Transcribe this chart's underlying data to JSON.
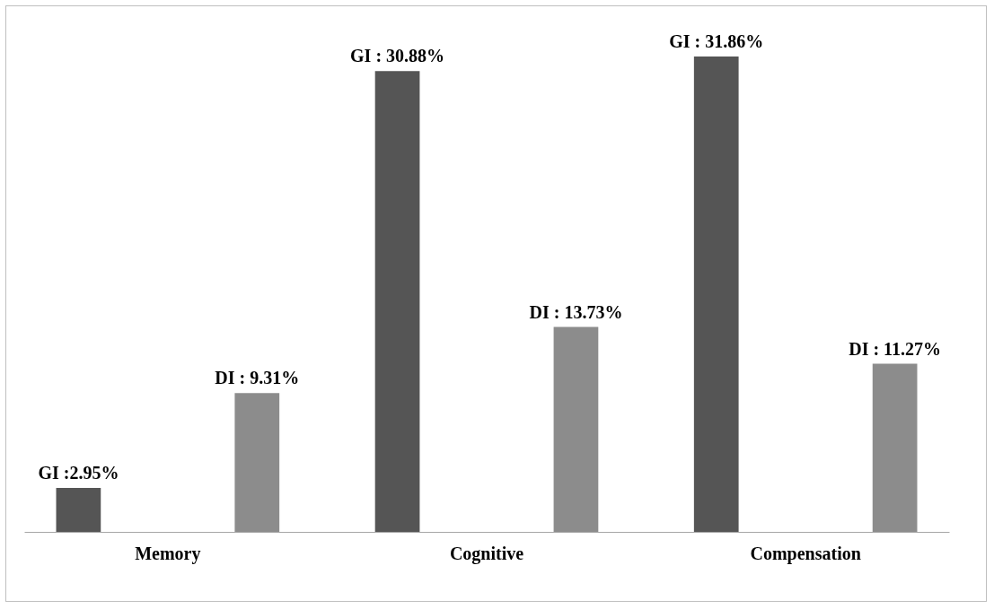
{
  "chart_data": {
    "type": "bar",
    "categories": [
      "Memory",
      "Cognitive",
      "Compensation"
    ],
    "series": [
      {
        "color": "#555555",
        "values": [
          2.95,
          30.88,
          31.86
        ],
        "value_labels": [
          "GI :2.95%",
          "GI : 30.88%",
          "GI : 31.86%"
        ]
      },
      {
        "color": "#8c8c8c",
        "values": [
          9.31,
          13.73,
          11.27
        ],
        "value_labels": [
          "DI : 9.31%",
          "DI : 13.73%",
          "DI : 11.27%"
        ]
      }
    ],
    "grid": false,
    "legend": false
  }
}
